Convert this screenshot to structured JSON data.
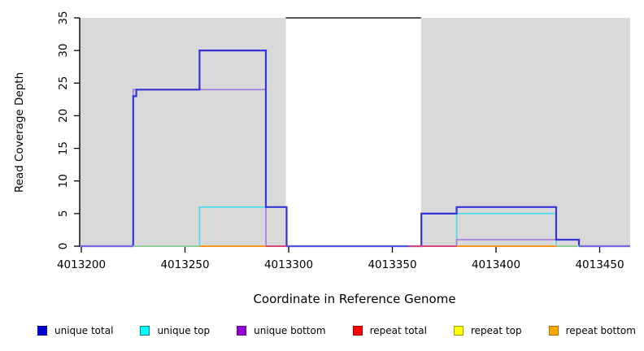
{
  "figure": {
    "y_axis": {
      "label": "Read Coverage Depth",
      "ticks": [
        0,
        5,
        10,
        15,
        20,
        25,
        30,
        35
      ],
      "lim": [
        0,
        35
      ]
    },
    "x_axis": {
      "label": "Coordinate in Reference Genome",
      "ticks": [
        4013200,
        4013250,
        4013300,
        4013350,
        4013400,
        4013450
      ],
      "lim": [
        4013199.2,
        4013464.7
      ]
    },
    "legend": [
      {
        "label": "unique total",
        "color": "#0000cd",
        "border": "#0000a0"
      },
      {
        "label": "unique top",
        "color": "#00ffff",
        "border": "#0a7d8c"
      },
      {
        "label": "unique bottom",
        "color": "#9400d3",
        "border": "#6a0a96"
      },
      {
        "label": "repeat total",
        "color": "#ff0000",
        "border": "#990000"
      },
      {
        "label": "repeat top",
        "color": "#ffff00",
        "border": "#9a9a00"
      },
      {
        "label": "repeat bottom",
        "color": "#ffa500",
        "border": "#b06f00"
      }
    ]
  },
  "chart_data": {
    "type": "line",
    "title": "",
    "xlabel": "Coordinate in Reference Genome",
    "ylabel": "Read Coverage Depth",
    "xlim": [
      4013199.2,
      4013464.7
    ],
    "ylim": [
      0,
      35
    ],
    "grid": false,
    "legend_position": "bottom",
    "region_color": "#d9d9d9",
    "ceiling_color": "#575757",
    "shaded_regions": [
      {
        "x0": 4013199.2,
        "x1": 4013298.6
      },
      {
        "x0": 4013363.8,
        "x1": 4013464.7
      }
    ],
    "masked_gap": {
      "x0": 4013298.6,
      "x1": 4013363.8,
      "ceiling_value": 35
    },
    "series": [
      {
        "name": "unique top",
        "color": "#45e0ee",
        "width": 1.6,
        "points": [
          [
            4013199.2,
            0
          ],
          [
            4013257,
            6
          ],
          [
            4013299,
            0
          ],
          [
            4013381,
            5
          ],
          [
            4013429,
            0
          ],
          [
            4013464.7,
            0
          ]
        ]
      },
      {
        "name": "unique bottom",
        "color": "#a678e2",
        "width": 1.6,
        "points": [
          [
            4013199.2,
            0
          ],
          [
            4013225,
            24
          ],
          [
            4013289,
            0
          ],
          [
            4013381,
            1
          ],
          [
            4013440,
            0
          ],
          [
            4013464.7,
            0
          ]
        ]
      },
      {
        "name": "unique total",
        "color": "#3434d8",
        "width": 2.2,
        "points": [
          [
            4013199.2,
            0
          ],
          [
            4013225,
            23
          ],
          [
            4013226.5,
            24
          ],
          [
            4013257,
            30
          ],
          [
            4013289,
            6
          ],
          [
            4013299,
            0
          ],
          [
            4013364,
            5
          ],
          [
            4013381,
            6
          ],
          [
            4013429,
            1
          ],
          [
            4013440,
            0
          ],
          [
            4013464.7,
            0
          ]
        ]
      },
      {
        "name": "repeat total",
        "color": "#d6457d",
        "width": 2,
        "points": [
          [
            4013199.2,
            0
          ],
          [
            4013464.7,
            0
          ]
        ]
      },
      {
        "name": "repeat top",
        "color": "#eded4a",
        "width": 2,
        "points": [
          [
            4013199.2,
            0
          ],
          [
            4013464.7,
            0
          ]
        ]
      },
      {
        "name": "repeat bottom",
        "color": "#ff9a1e",
        "width": 2,
        "points": [
          [
            4013199.2,
            0
          ],
          [
            4013464.7,
            0
          ]
        ]
      }
    ],
    "zero_segments": [
      {
        "x0": 4013199.2,
        "x1": 4013225,
        "color": "#7a68e0"
      },
      {
        "x0": 4013225,
        "x1": 4013257,
        "color": "#90cf9a"
      },
      {
        "x0": 4013257,
        "x1": 4013289,
        "color": "#ff9a1e"
      },
      {
        "x0": 4013289,
        "x1": 4013299,
        "color": "#d6457d"
      },
      {
        "x0": 4013299,
        "x1": 4013358,
        "color": "#5353e2"
      },
      {
        "x0": 4013358,
        "x1": 4013381,
        "color": "#d6457d"
      },
      {
        "x0": 4013381,
        "x1": 4013429,
        "color": "#ff9a1e"
      },
      {
        "x0": 4013429,
        "x1": 4013440,
        "color": "#90cf9a"
      },
      {
        "x0": 4013440,
        "x1": 4013464.7,
        "color": "#7a68e0"
      }
    ]
  }
}
